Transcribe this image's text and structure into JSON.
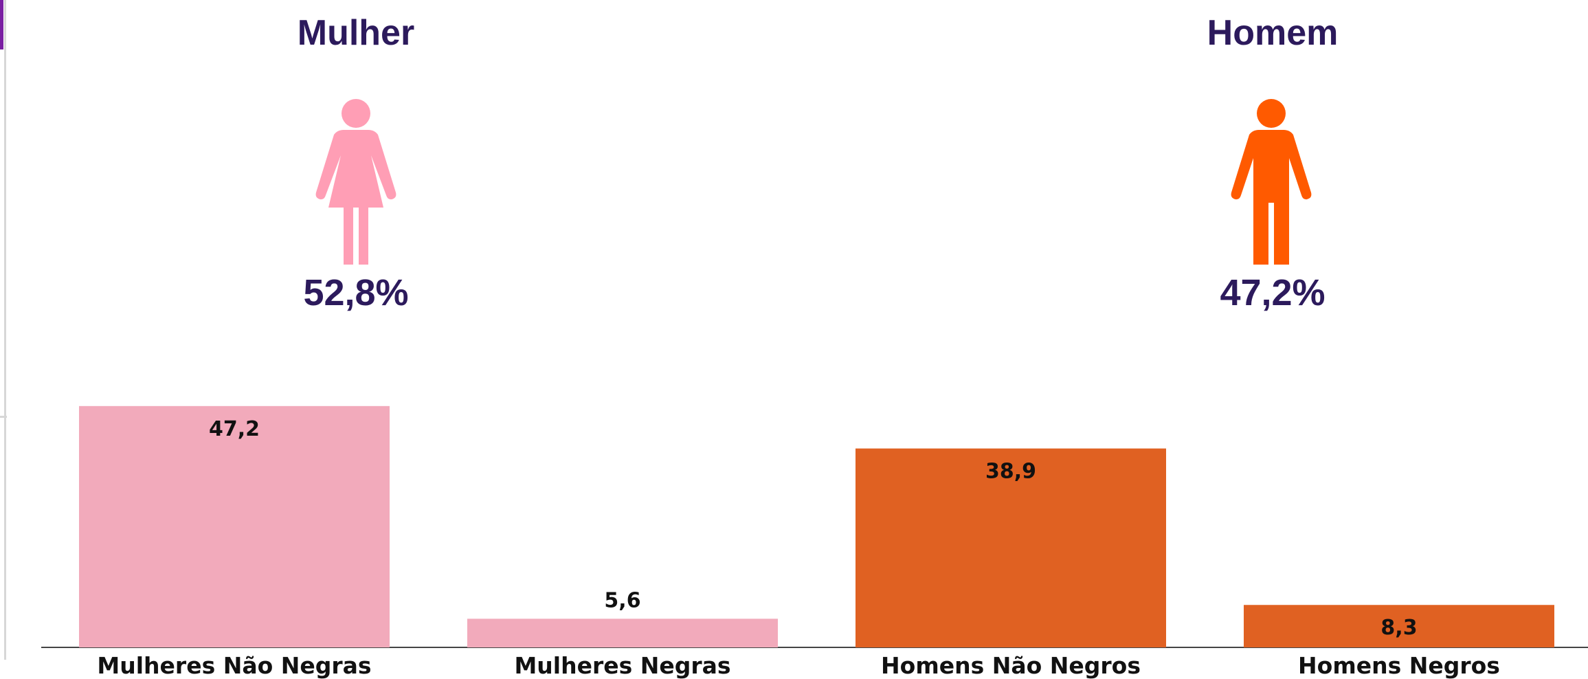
{
  "groups": [
    {
      "title": "Mulher",
      "percent": "52,8%",
      "icon": "female-person-icon",
      "color": "#ff9eb5"
    },
    {
      "title": "Homem",
      "percent": "47,2%",
      "icon": "male-person-icon",
      "color": "#ff5a00"
    }
  ],
  "chart_data": {
    "type": "bar",
    "categories": [
      "Mulheres Não Negras",
      "Mulheres Negras",
      "Homens Não Negros",
      "Homens Negros"
    ],
    "values": [
      47.2,
      5.6,
      38.9,
      8.3
    ],
    "value_labels": [
      "47,2",
      "5,6",
      "38,9",
      "8,3"
    ],
    "colors": [
      "#f2aabb",
      "#f2aabb",
      "#e06122",
      "#e06122"
    ],
    "title": "",
    "xlabel": "",
    "ylabel": "",
    "ylim": [
      0,
      50
    ],
    "grid": false,
    "legend": "none"
  }
}
